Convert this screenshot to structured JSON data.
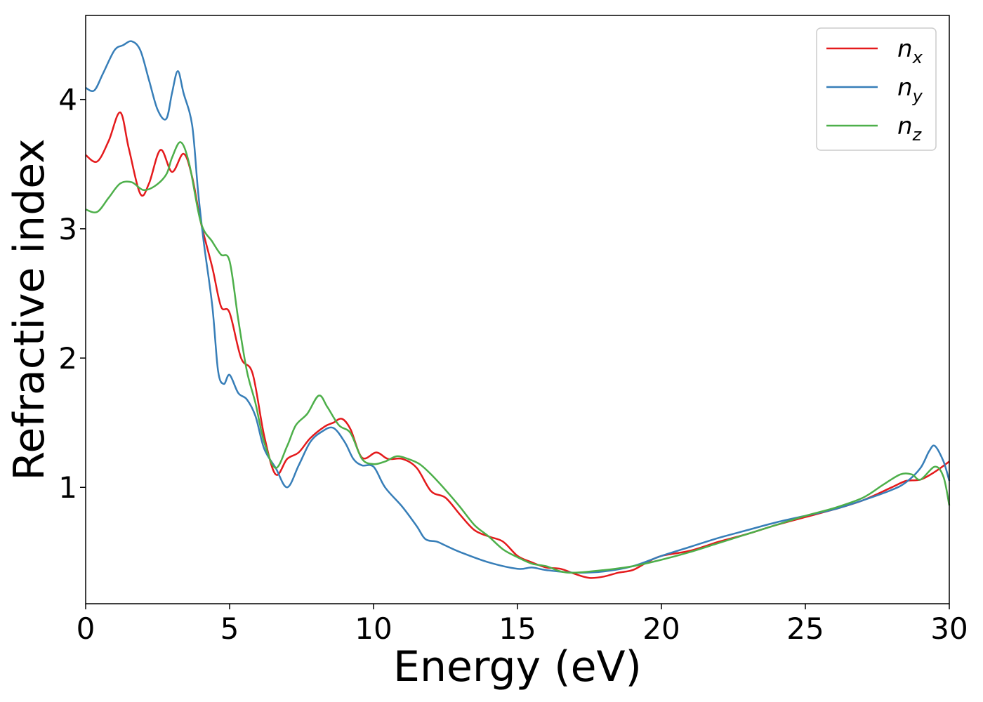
{
  "chart_data": {
    "type": "line",
    "xlabel": "Energy (eV)",
    "ylabel": "Refractive index",
    "xlim": [
      0,
      30
    ],
    "ylim": [
      0.1,
      4.65
    ],
    "xticks": [
      0,
      5,
      10,
      15,
      20,
      25,
      30
    ],
    "yticks": [
      1,
      2,
      3,
      4
    ],
    "grid": false,
    "legend_position": "top-right",
    "series": [
      {
        "name": "n",
        "subscript": "x",
        "color": "#e41a1c",
        "points": [
          [
            0,
            3.57
          ],
          [
            0.4,
            3.52
          ],
          [
            0.8,
            3.68
          ],
          [
            1.2,
            3.9
          ],
          [
            1.5,
            3.62
          ],
          [
            1.9,
            3.27
          ],
          [
            2.2,
            3.35
          ],
          [
            2.6,
            3.61
          ],
          [
            3.0,
            3.44
          ],
          [
            3.4,
            3.58
          ],
          [
            3.7,
            3.4
          ],
          [
            4.0,
            3.05
          ],
          [
            4.4,
            2.7
          ],
          [
            4.7,
            2.4
          ],
          [
            5.0,
            2.35
          ],
          [
            5.4,
            2.0
          ],
          [
            5.8,
            1.88
          ],
          [
            6.2,
            1.4
          ],
          [
            6.6,
            1.1
          ],
          [
            7.0,
            1.22
          ],
          [
            7.4,
            1.27
          ],
          [
            7.8,
            1.38
          ],
          [
            8.3,
            1.47
          ],
          [
            8.6,
            1.5
          ],
          [
            8.9,
            1.53
          ],
          [
            9.2,
            1.45
          ],
          [
            9.6,
            1.23
          ],
          [
            10.1,
            1.27
          ],
          [
            10.5,
            1.22
          ],
          [
            11.0,
            1.22
          ],
          [
            11.5,
            1.15
          ],
          [
            12.0,
            0.97
          ],
          [
            12.5,
            0.92
          ],
          [
            13.0,
            0.79
          ],
          [
            13.5,
            0.67
          ],
          [
            14.0,
            0.62
          ],
          [
            14.5,
            0.58
          ],
          [
            15.0,
            0.47
          ],
          [
            15.5,
            0.42
          ],
          [
            16.0,
            0.38
          ],
          [
            16.5,
            0.37
          ],
          [
            17.0,
            0.33
          ],
          [
            17.5,
            0.3
          ],
          [
            18.0,
            0.31
          ],
          [
            18.5,
            0.34
          ],
          [
            19.0,
            0.36
          ],
          [
            19.5,
            0.42
          ],
          [
            20.0,
            0.47
          ],
          [
            21.0,
            0.51
          ],
          [
            22.0,
            0.58
          ],
          [
            23.0,
            0.64
          ],
          [
            24.0,
            0.71
          ],
          [
            25.0,
            0.77
          ],
          [
            26.0,
            0.83
          ],
          [
            27.0,
            0.9
          ],
          [
            28.0,
            1.0
          ],
          [
            28.5,
            1.05
          ],
          [
            29.0,
            1.06
          ],
          [
            29.5,
            1.12
          ],
          [
            30.0,
            1.2
          ]
        ]
      },
      {
        "name": "n",
        "subscript": "y",
        "color": "#377eb8",
        "points": [
          [
            0,
            4.09
          ],
          [
            0.3,
            4.07
          ],
          [
            0.6,
            4.2
          ],
          [
            1.0,
            4.38
          ],
          [
            1.3,
            4.42
          ],
          [
            1.6,
            4.45
          ],
          [
            1.9,
            4.38
          ],
          [
            2.2,
            4.15
          ],
          [
            2.5,
            3.92
          ],
          [
            2.8,
            3.85
          ],
          [
            3.0,
            4.05
          ],
          [
            3.2,
            4.22
          ],
          [
            3.4,
            4.05
          ],
          [
            3.7,
            3.8
          ],
          [
            3.9,
            3.3
          ],
          [
            4.1,
            2.9
          ],
          [
            4.4,
            2.4
          ],
          [
            4.6,
            1.9
          ],
          [
            4.8,
            1.8
          ],
          [
            5.0,
            1.87
          ],
          [
            5.3,
            1.73
          ],
          [
            5.6,
            1.68
          ],
          [
            5.9,
            1.55
          ],
          [
            6.2,
            1.3
          ],
          [
            6.6,
            1.15
          ],
          [
            7.0,
            1.0
          ],
          [
            7.4,
            1.17
          ],
          [
            7.8,
            1.35
          ],
          [
            8.2,
            1.43
          ],
          [
            8.6,
            1.46
          ],
          [
            9.0,
            1.35
          ],
          [
            9.3,
            1.22
          ],
          [
            9.6,
            1.17
          ],
          [
            10.0,
            1.16
          ],
          [
            10.4,
            1.0
          ],
          [
            11.0,
            0.85
          ],
          [
            11.5,
            0.7
          ],
          [
            11.8,
            0.6
          ],
          [
            12.2,
            0.58
          ],
          [
            12.5,
            0.55
          ],
          [
            13.0,
            0.5
          ],
          [
            14.0,
            0.42
          ],
          [
            15.0,
            0.37
          ],
          [
            15.5,
            0.38
          ],
          [
            16.0,
            0.36
          ],
          [
            17.0,
            0.34
          ],
          [
            18.0,
            0.35
          ],
          [
            19.0,
            0.39
          ],
          [
            20.0,
            0.47
          ],
          [
            21.0,
            0.54
          ],
          [
            22.0,
            0.61
          ],
          [
            23.0,
            0.67
          ],
          [
            24.0,
            0.73
          ],
          [
            25.0,
            0.78
          ],
          [
            26.0,
            0.83
          ],
          [
            27.0,
            0.9
          ],
          [
            28.0,
            0.98
          ],
          [
            28.5,
            1.04
          ],
          [
            29.0,
            1.15
          ],
          [
            29.3,
            1.28
          ],
          [
            29.5,
            1.32
          ],
          [
            29.8,
            1.2
          ],
          [
            30.0,
            1.05
          ]
        ]
      },
      {
        "name": "n",
        "subscript": "z",
        "color": "#4daf4a",
        "points": [
          [
            0,
            3.15
          ],
          [
            0.4,
            3.13
          ],
          [
            0.8,
            3.24
          ],
          [
            1.2,
            3.35
          ],
          [
            1.6,
            3.36
          ],
          [
            2.0,
            3.3
          ],
          [
            2.4,
            3.33
          ],
          [
            2.8,
            3.42
          ],
          [
            3.0,
            3.55
          ],
          [
            3.3,
            3.67
          ],
          [
            3.6,
            3.5
          ],
          [
            4.0,
            3.05
          ],
          [
            4.4,
            2.9
          ],
          [
            4.7,
            2.8
          ],
          [
            5.0,
            2.75
          ],
          [
            5.3,
            2.3
          ],
          [
            5.6,
            1.9
          ],
          [
            5.9,
            1.65
          ],
          [
            6.2,
            1.35
          ],
          [
            6.6,
            1.15
          ],
          [
            7.0,
            1.32
          ],
          [
            7.3,
            1.48
          ],
          [
            7.7,
            1.57
          ],
          [
            8.1,
            1.71
          ],
          [
            8.4,
            1.62
          ],
          [
            8.8,
            1.48
          ],
          [
            9.2,
            1.42
          ],
          [
            9.6,
            1.22
          ],
          [
            10.0,
            1.18
          ],
          [
            10.4,
            1.2
          ],
          [
            10.8,
            1.24
          ],
          [
            11.2,
            1.22
          ],
          [
            11.6,
            1.18
          ],
          [
            12.0,
            1.1
          ],
          [
            12.5,
            0.98
          ],
          [
            13.0,
            0.85
          ],
          [
            13.5,
            0.71
          ],
          [
            14.0,
            0.62
          ],
          [
            14.5,
            0.52
          ],
          [
            15.0,
            0.46
          ],
          [
            15.5,
            0.41
          ],
          [
            16.0,
            0.39
          ],
          [
            16.5,
            0.35
          ],
          [
            17.0,
            0.34
          ],
          [
            18.0,
            0.36
          ],
          [
            19.0,
            0.39
          ],
          [
            20.0,
            0.44
          ],
          [
            21.0,
            0.5
          ],
          [
            22.0,
            0.57
          ],
          [
            23.0,
            0.64
          ],
          [
            24.0,
            0.71
          ],
          [
            25.0,
            0.78
          ],
          [
            26.0,
            0.84
          ],
          [
            27.0,
            0.92
          ],
          [
            27.7,
            1.02
          ],
          [
            28.3,
            1.1
          ],
          [
            28.7,
            1.1
          ],
          [
            29.0,
            1.06
          ],
          [
            29.5,
            1.16
          ],
          [
            29.8,
            1.08
          ],
          [
            30.0,
            0.86
          ]
        ]
      }
    ]
  }
}
